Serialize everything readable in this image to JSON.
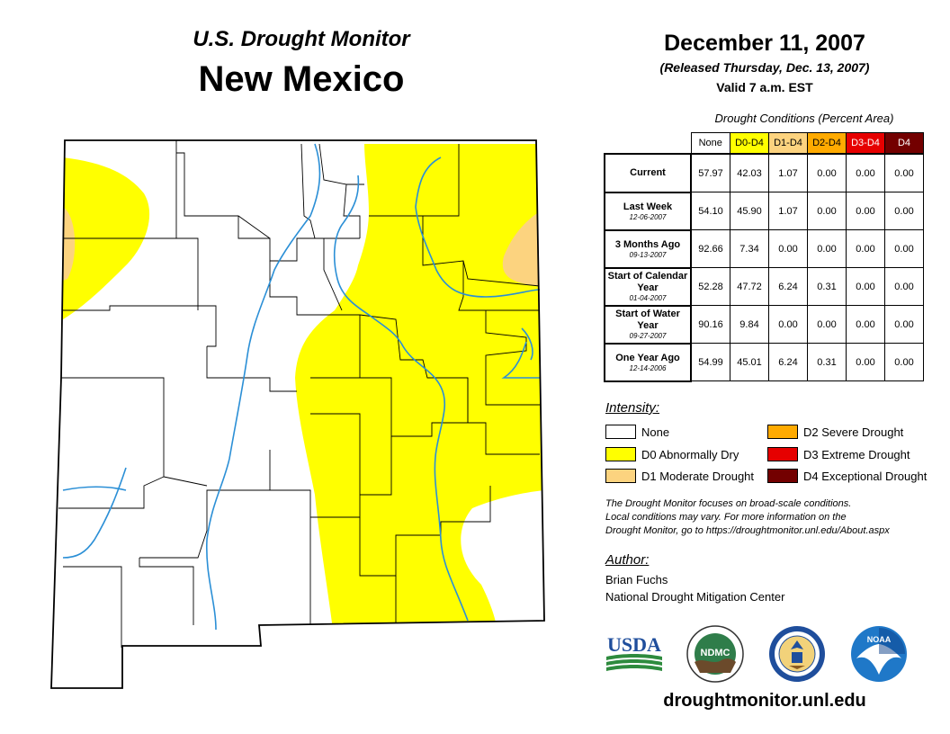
{
  "header": {
    "subtitle": "U.S. Drought Monitor",
    "state": "New Mexico",
    "date": "December 11, 2007",
    "released": "(Released Thursday, Dec. 13, 2007)",
    "valid": "Valid 7 a.m. EST"
  },
  "stats": {
    "caption": "Drought Conditions (Percent Area)",
    "columns": [
      "None",
      "D0-D4",
      "D1-D4",
      "D2-D4",
      "D3-D4",
      "D4"
    ],
    "column_colors": [
      "#ffffff",
      "#ffff00",
      "#fcd37f",
      "#ffaa00",
      "#e60000",
      "#730000"
    ],
    "rows": [
      {
        "label": "Current",
        "date": "",
        "values": [
          "57.97",
          "42.03",
          "1.07",
          "0.00",
          "0.00",
          "0.00"
        ]
      },
      {
        "label": "Last Week",
        "date": "12-06-2007",
        "values": [
          "54.10",
          "45.90",
          "1.07",
          "0.00",
          "0.00",
          "0.00"
        ]
      },
      {
        "label": "3 Months Ago",
        "date": "09-13-2007",
        "values": [
          "92.66",
          "7.34",
          "0.00",
          "0.00",
          "0.00",
          "0.00"
        ]
      },
      {
        "label": "Start of Calendar Year",
        "date": "01-04-2007",
        "values": [
          "52.28",
          "47.72",
          "6.24",
          "0.31",
          "0.00",
          "0.00"
        ]
      },
      {
        "label": "Start of Water Year",
        "date": "09-27-2007",
        "values": [
          "90.16",
          "9.84",
          "0.00",
          "0.00",
          "0.00",
          "0.00"
        ]
      },
      {
        "label": "One Year Ago",
        "date": "12-14-2006",
        "values": [
          "54.99",
          "45.01",
          "6.24",
          "0.31",
          "0.00",
          "0.00"
        ]
      }
    ]
  },
  "legend": {
    "title": "Intensity:",
    "items": [
      {
        "label": "None",
        "color": "#ffffff"
      },
      {
        "label": "D0 Abnormally Dry",
        "color": "#ffff00"
      },
      {
        "label": "D1 Moderate Drought",
        "color": "#fcd37f"
      },
      {
        "label": "D2 Severe Drought",
        "color": "#ffaa00"
      },
      {
        "label": "D3 Extreme Drought",
        "color": "#e60000"
      },
      {
        "label": "D4 Exceptional Drought",
        "color": "#730000"
      }
    ]
  },
  "note": {
    "line1": "The Drought Monitor focuses on broad-scale conditions.",
    "line2": "Local conditions may vary. For more information on the",
    "line3": "Drought Monitor, go to https://droughtmonitor.unl.edu/About.aspx"
  },
  "author": {
    "title": "Author:",
    "name": "Brian Fuchs",
    "org": "National Drought Mitigation Center"
  },
  "logos": {
    "usda": "USDA",
    "ndmc": "NDMC",
    "noaa": "NOAA"
  },
  "footer": {
    "website": "droughtmonitor.unl.edu"
  },
  "colors": {
    "river": "#2b8fd6",
    "d0": "#ffff00",
    "d1": "#fcd37f"
  }
}
